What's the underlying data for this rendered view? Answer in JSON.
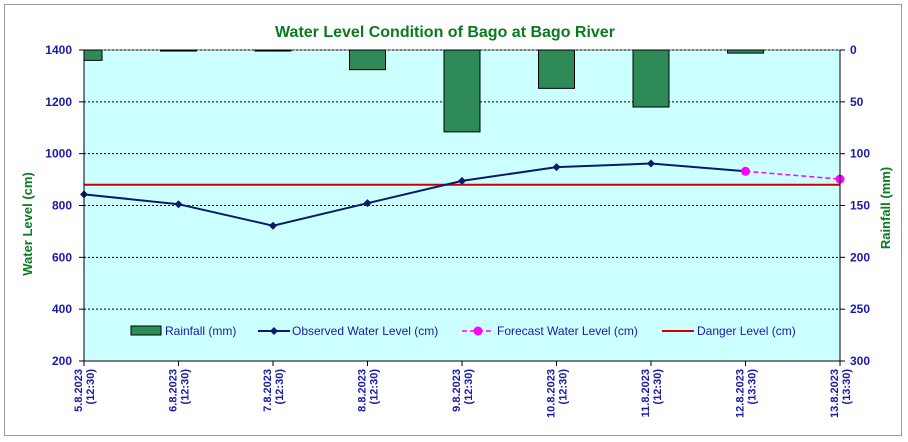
{
  "chart_data": {
    "type": "bar+line",
    "title": "Water Level Condition  of Bago at Bago River",
    "ylabel_left": "Water Level (cm)",
    "ylabel_right": "Rainfall (mm)",
    "left_axis": {
      "min": 200,
      "max": 1400,
      "step": 200,
      "ticks": [
        "200",
        "400",
        "600",
        "800",
        "1000",
        "1200",
        "1400"
      ]
    },
    "right_axis": {
      "min": 0,
      "max": 300,
      "step": 50,
      "reversed": true,
      "ticks": [
        "0",
        "50",
        "100",
        "150",
        "200",
        "250",
        "300"
      ]
    },
    "categories": [
      [
        "5.8.2023",
        "(12:30)"
      ],
      [
        "6.8.2023",
        "(12:30)"
      ],
      [
        "7.8.2023",
        "(12:30)"
      ],
      [
        "8.8.2023",
        "(12:30)"
      ],
      [
        "9.8.2023",
        "(12:30)"
      ],
      [
        "10.8.2023",
        "(12:30)"
      ],
      [
        "11.8.2023",
        "(12:30)"
      ],
      [
        "12.8.2023",
        "(13:30)"
      ],
      [
        "13.8.2023",
        "(13:30)"
      ]
    ],
    "rainfall": {
      "name": "Rainfall (mm)",
      "color": "#2e8b57",
      "values": [
        10,
        1,
        1,
        19,
        79,
        37,
        55,
        3,
        null
      ]
    },
    "observed": {
      "name": "Observed Water Level (cm)",
      "color": "#0b1a6b",
      "values": [
        843,
        805,
        722,
        809,
        895,
        948,
        962,
        932,
        null
      ]
    },
    "forecast": {
      "name": "Forecast Water Level (cm)",
      "color": "#ff00ff",
      "values": [
        null,
        null,
        null,
        null,
        null,
        null,
        null,
        932,
        902
      ]
    },
    "danger": {
      "name": "Danger Level (cm)",
      "color": "#cc0000",
      "value": 880
    },
    "grid": true,
    "plot_background": "#ccffff",
    "legend_position": "bottom-inside"
  }
}
